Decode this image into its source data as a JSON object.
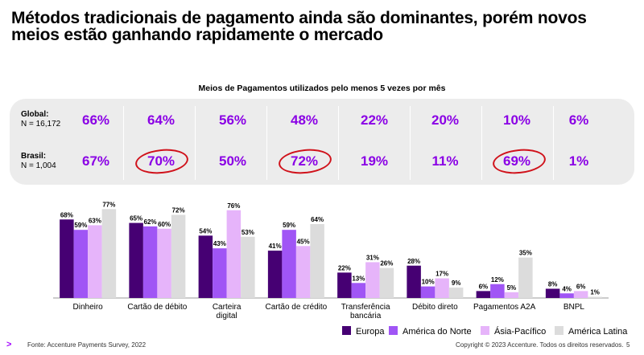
{
  "title": "Métodos tradicionais de pagamento ainda são dominantes, porém novos meios estão ganhando rapidamente o mercado",
  "panel": {
    "subtitle": "Meios de Pagamentos utilizados pelo menos 5 vezes por mês",
    "global_label": "Global:",
    "global_n": "N = 16,172",
    "brasil_label": "Brasil:",
    "brasil_n": "N = 1,004",
    "global_values": [
      "66%",
      "64%",
      "56%",
      "48%",
      "22%",
      "20%",
      "10%",
      "6%"
    ],
    "brasil_values": [
      "67%",
      "70%",
      "50%",
      "72%",
      "19%",
      "11%",
      "69%",
      "1%"
    ],
    "highlight_color": "#d0121b",
    "value_color": "#8a00e5"
  },
  "chart_data": {
    "type": "bar",
    "categories": [
      "Dinheiro",
      "Cartão de débito",
      "Carteira digital",
      "Cartão de crédito",
      "Transferência bancária",
      "Débito direto",
      "Pagamentos A2A",
      "BNPL"
    ],
    "series": [
      {
        "name": "Europa",
        "color": "#460073",
        "values": [
          68,
          65,
          54,
          41,
          22,
          28,
          6,
          8
        ]
      },
      {
        "name": "América do Norte",
        "color": "#a055f5",
        "values": [
          59,
          62,
          43,
          59,
          13,
          10,
          12,
          4
        ]
      },
      {
        "name": "Ásia-Pacífico",
        "color": "#e6b4fa",
        "values": [
          63,
          60,
          76,
          45,
          31,
          17,
          5,
          6
        ]
      },
      {
        "name": "América Latina",
        "color": "#dcdcdc",
        "values": [
          77,
          72,
          53,
          64,
          26,
          9,
          35,
          1
        ]
      }
    ],
    "ylim": [
      0,
      80
    ]
  },
  "legend": [
    {
      "name": "Europa",
      "color": "#460073"
    },
    {
      "name": "América do Norte",
      "color": "#a055f5"
    },
    {
      "name": "Ásia-Pacífico",
      "color": "#e6b4fa"
    },
    {
      "name": "América Latina",
      "color": "#dcdcdc"
    }
  ],
  "footer": {
    "source": "Fonte: Accenture Payments Survey, 2022",
    "copyright": "Copyright © 2023 Accenture. Todos os direitos reservados.",
    "page": "5",
    "logo": ">"
  }
}
